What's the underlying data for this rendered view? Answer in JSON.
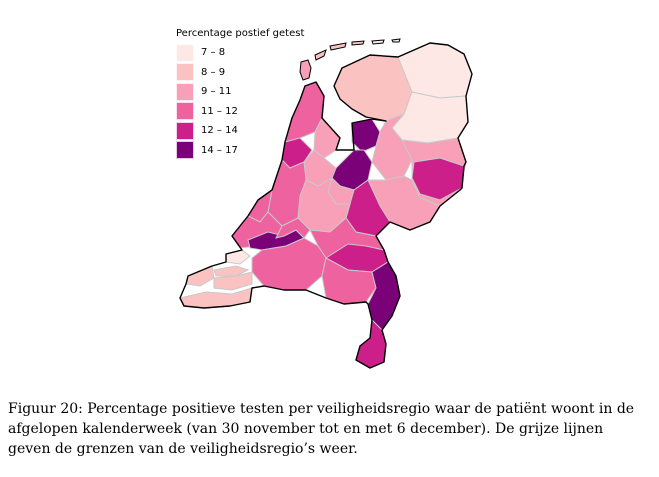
{
  "legend": {
    "title": "Percentage postief getest",
    "items": [
      {
        "label": "7 – 8",
        "color": "#fde8e6"
      },
      {
        "label": "8 – 9",
        "color": "#fbc2c2"
      },
      {
        "label": "9 – 11",
        "color": "#f7a0b8"
      },
      {
        "label": "11 – 12",
        "color": "#ee62a0"
      },
      {
        "label": "12 – 14",
        "color": "#cc1f8a"
      },
      {
        "label": "14 – 17",
        "color": "#7a0177"
      }
    ]
  },
  "caption": {
    "text": "Figuur 20: Percentage positieve testen per veiligheidsregio waar de patiënt woont in de afgelopen kalenderweek (van 30 november tot en met 6 december). De grijze lijnen geven de grenzen van de veiligheidsregio’s weer."
  },
  "map": {
    "border_color": "#c9c9c9",
    "outline_color": "#000000"
  }
}
